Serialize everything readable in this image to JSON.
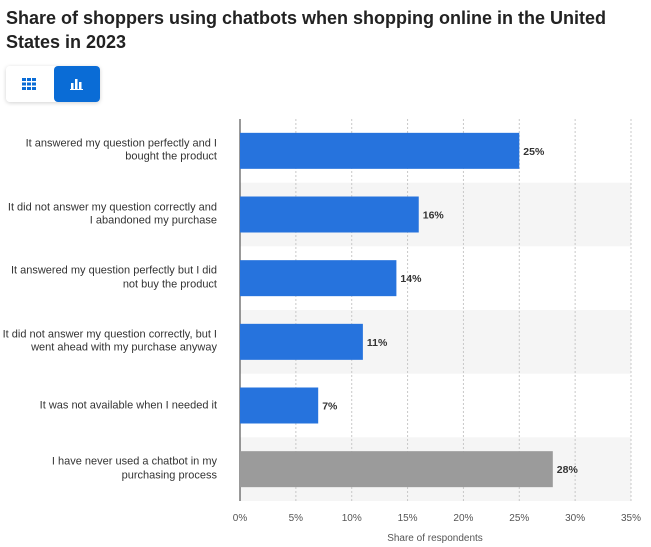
{
  "title": "Share of shoppers using chatbots when shopping online in the United States in 2023",
  "toolbar": {
    "table_icon": "grid-icon",
    "chart_icon": "bar-chart-icon",
    "active_color": "#0a6cd6"
  },
  "chart_data": {
    "type": "bar",
    "orientation": "horizontal",
    "categories": [
      "It answered my question perfectly and I bought the product",
      "It did not answer my question correctly and I abandoned my purchase",
      "It answered my question perfectly but I did not buy the product",
      "It did not answer my question correctly, but I went ahead with my purchase anyway",
      "It was not available when I needed it",
      "I have never used a chatbot in my purchasing process"
    ],
    "values": [
      25,
      16,
      14,
      11,
      7,
      28
    ],
    "value_labels": [
      "25%",
      "16%",
      "14%",
      "11%",
      "7%",
      "28%"
    ],
    "bar_colors": [
      "#2673dd",
      "#2673dd",
      "#2673dd",
      "#2673dd",
      "#2673dd",
      "#9b9b9b"
    ],
    "xlabel": "Share of respondents",
    "ylabel": "",
    "xlim": [
      0,
      35
    ],
    "xticks": [
      0,
      5,
      10,
      15,
      20,
      25,
      30,
      35
    ],
    "xtick_labels": [
      "0%",
      "5%",
      "10%",
      "15%",
      "20%",
      "25%",
      "30%",
      "35%"
    ],
    "grid": true,
    "alternating_row_bands": true
  }
}
